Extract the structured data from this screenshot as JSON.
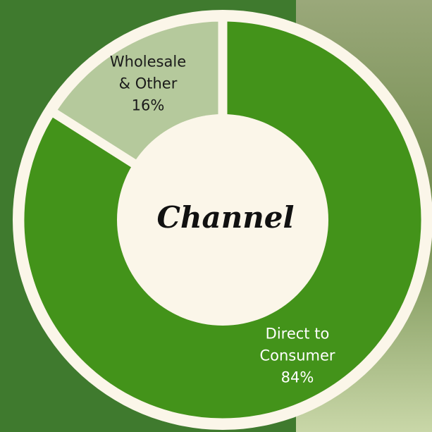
{
  "chart_data": {
    "type": "donut",
    "title": "Channel",
    "categories": [
      "Direct to Consumer",
      "Wholesale & Other"
    ],
    "values": [
      84,
      16
    ],
    "value_labels": [
      "84%",
      "16%"
    ],
    "colors": [
      "#43931a",
      "#b5c99c"
    ]
  }
}
